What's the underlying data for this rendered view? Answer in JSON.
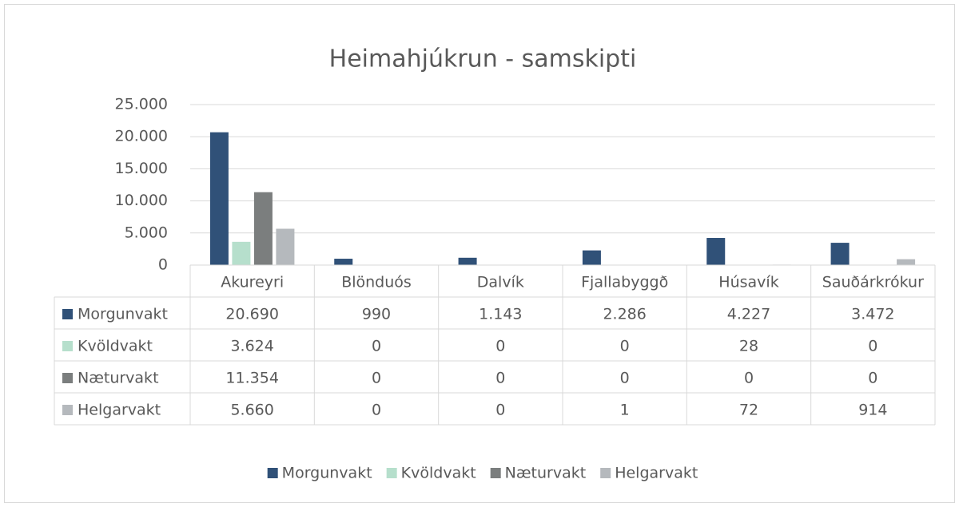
{
  "chart_data": {
    "type": "bar",
    "title": "Heimahjúkrun - samskipti",
    "categories": [
      "Akureyri",
      "Blönduós",
      "Dalvík",
      "Fjallabyggð",
      "Húsavík",
      "Sauðárkrókur"
    ],
    "series": [
      {
        "name": "Morgunvakt",
        "color": "#305178",
        "values": [
          20690,
          990,
          1143,
          2286,
          4227,
          3472
        ],
        "value_labels": [
          "20.690",
          "990",
          "1.143",
          "2.286",
          "4.227",
          "3.472"
        ]
      },
      {
        "name": "Kvöldvakt",
        "color": "#b6dfcc",
        "values": [
          3624,
          0,
          0,
          0,
          28,
          0
        ],
        "value_labels": [
          "3.624",
          "0",
          "0",
          "0",
          "28",
          "0"
        ]
      },
      {
        "name": "Næturvakt",
        "color": "#7b7e7e",
        "values": [
          11354,
          0,
          0,
          0,
          0,
          0
        ],
        "value_labels": [
          "11.354",
          "0",
          "0",
          "0",
          "0",
          "0"
        ]
      },
      {
        "name": "Helgarvakt",
        "color": "#b5b9bd",
        "values": [
          5660,
          0,
          0,
          1,
          72,
          914
        ],
        "value_labels": [
          "5.660",
          "0",
          "0",
          "1",
          "72",
          "914"
        ]
      }
    ],
    "ylim": [
      0,
      25000
    ],
    "yticks": [
      0,
      {
        "value": 5000,
        "label": "5.000"
      },
      {
        "value": 10000,
        "label": "10.000"
      },
      {
        "value": 15000,
        "label": "15.000"
      },
      {
        "value": 20000,
        "label": "20.000"
      },
      {
        "value": 25000,
        "label": "25.000"
      }
    ],
    "grid": true,
    "legend": "bottom",
    "data_table": true
  }
}
